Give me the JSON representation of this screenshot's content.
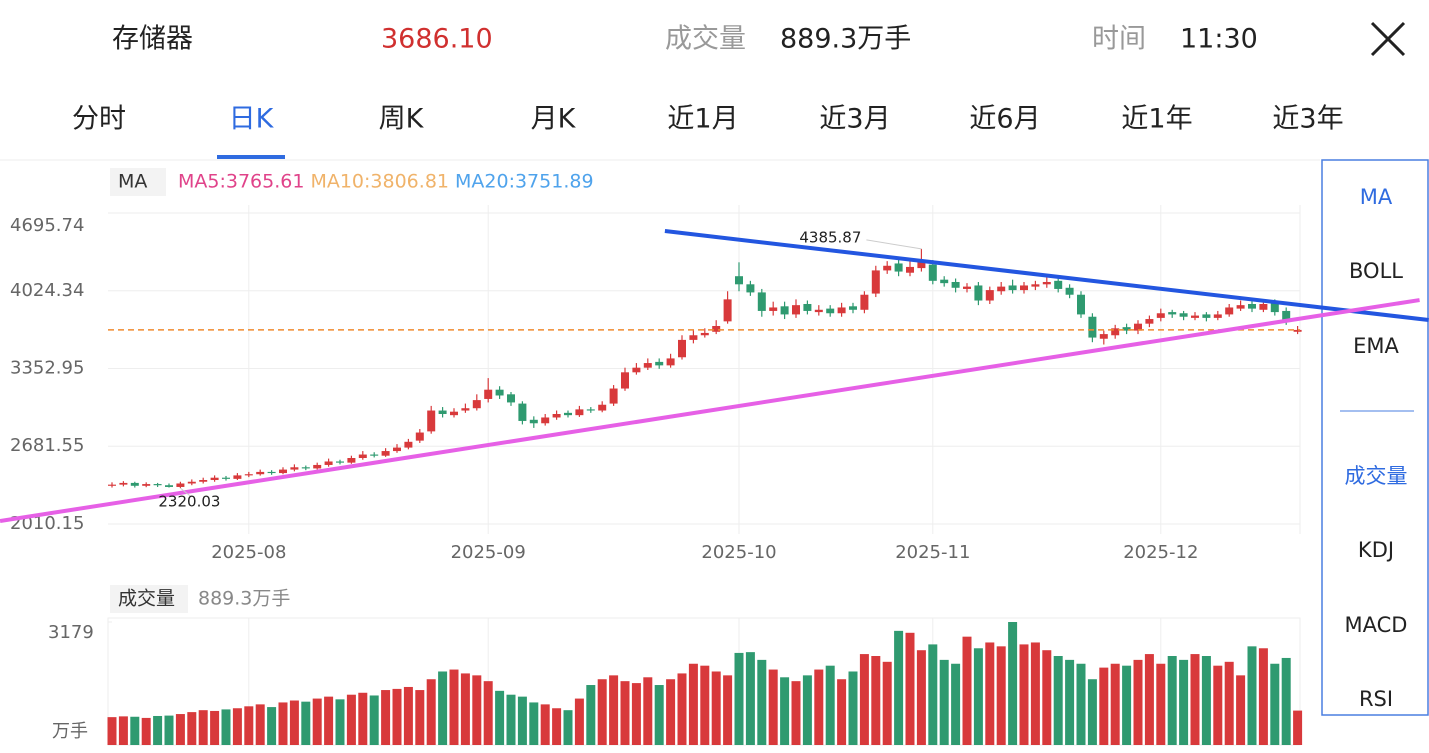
{
  "header": {
    "name": "存储器",
    "price": "3686.10",
    "volume_label": "成交量",
    "volume": "889.3万手",
    "time_label": "时间",
    "time": "11:30"
  },
  "tabs": {
    "items": [
      "分时",
      "日K",
      "周K",
      "月K",
      "近1月",
      "近3月",
      "近6月",
      "近1年",
      "近3年"
    ],
    "selected": 1
  },
  "side_panel": {
    "items": [
      "MA",
      "BOLL",
      "EMA",
      "成交量",
      "KDJ",
      "MACD",
      "RSI"
    ],
    "selected": [
      0,
      3
    ]
  },
  "chart_data": [
    {
      "type": "candlestick",
      "legend": {
        "label": "MA",
        "items": [
          {
            "text": "MA5:3765.61",
            "color": "#e0438a"
          },
          {
            "text": "MA10:3806.81",
            "color": "#f0b36a"
          },
          {
            "text": "MA20:3751.89",
            "color": "#4fa3ec"
          }
        ]
      },
      "up_color": "#d8393b",
      "down_color": "#2f9a70",
      "open": [
        2340,
        2350,
        2365,
        2340,
        2355,
        2345,
        2330,
        2360,
        2375,
        2390,
        2410,
        2400,
        2430,
        2440,
        2460,
        2450,
        2480,
        2500,
        2490,
        2520,
        2550,
        2540,
        2580,
        2610,
        2600,
        2640,
        2670,
        2730,
        2810,
        2990,
        2950,
        2990,
        3010,
        3090,
        3170,
        3130,
        3050,
        2910,
        2880,
        2930,
        2970,
        2950,
        3000,
        2990,
        3050,
        3180,
        3320,
        3360,
        3410,
        3380,
        3450,
        3600,
        3640,
        3670,
        3760,
        4150,
        4080,
        4010,
        3850,
        3890,
        3820,
        3910,
        3840,
        3870,
        3830,
        3890,
        3860,
        4000,
        4200,
        4260,
        4180,
        4220,
        4250,
        4120,
        4100,
        4040,
        4070,
        3940,
        4020,
        4070,
        4030,
        4060,
        4080,
        4110,
        4050,
        3990,
        3800,
        3610,
        3640,
        3710,
        3680,
        3740,
        3790,
        3840,
        3830,
        3790,
        3820,
        3790,
        3820,
        3870,
        3910,
        3860,
        3920,
        3850,
        3670
      ],
      "high": [
        2370,
        2380,
        2375,
        2370,
        2365,
        2360,
        2375,
        2395,
        2410,
        2430,
        2425,
        2450,
        2460,
        2480,
        2475,
        2500,
        2525,
        2515,
        2540,
        2575,
        2565,
        2600,
        2640,
        2630,
        2665,
        2700,
        2745,
        2830,
        3030,
        3020,
        3010,
        3050,
        3130,
        3270,
        3200,
        3150,
        3070,
        2940,
        2960,
        2990,
        2990,
        3030,
        3020,
        3070,
        3210,
        3360,
        3400,
        3440,
        3440,
        3480,
        3640,
        3690,
        3700,
        3770,
        4020,
        4270,
        4110,
        4040,
        3930,
        3930,
        3950,
        3940,
        3900,
        3900,
        3920,
        3920,
        4020,
        4240,
        4280,
        4300,
        4280,
        4385.87,
        4290,
        4150,
        4130,
        4090,
        4100,
        4060,
        4100,
        4120,
        4100,
        4110,
        4140,
        4130,
        4080,
        4020,
        3830,
        3680,
        3730,
        3740,
        3770,
        3810,
        3870,
        3860,
        3850,
        3840,
        3840,
        3850,
        3910,
        3940,
        3950,
        3940,
        3950,
        3880,
        3720
      ],
      "low": [
        2325,
        2335,
        2325,
        2328,
        2330,
        2325,
        2320.03,
        2345,
        2360,
        2375,
        2385,
        2390,
        2415,
        2428,
        2435,
        2440,
        2465,
        2475,
        2480,
        2505,
        2525,
        2530,
        2565,
        2585,
        2590,
        2625,
        2655,
        2710,
        2790,
        2930,
        2930,
        2970,
        2990,
        3060,
        3090,
        3030,
        2870,
        2840,
        2860,
        2910,
        2930,
        2935,
        2970,
        2975,
        3030,
        3160,
        3300,
        3340,
        3350,
        3360,
        3430,
        3570,
        3620,
        3650,
        3740,
        4020,
        3980,
        3800,
        3810,
        3780,
        3790,
        3820,
        3810,
        3800,
        3800,
        3830,
        3830,
        3970,
        4170,
        4150,
        4150,
        4190,
        4080,
        4060,
        4010,
        4010,
        3900,
        3910,
        3990,
        4000,
        4000,
        4030,
        4050,
        4010,
        3960,
        3790,
        3580,
        3560,
        3610,
        3650,
        3650,
        3710,
        3760,
        3790,
        3770,
        3770,
        3760,
        3770,
        3800,
        3850,
        3840,
        3840,
        3810,
        3730,
        3650
      ],
      "close": [
        2350,
        2365,
        2340,
        2355,
        2345,
        2330,
        2360,
        2375,
        2390,
        2410,
        2400,
        2430,
        2440,
        2460,
        2450,
        2480,
        2500,
        2490,
        2520,
        2550,
        2540,
        2580,
        2610,
        2600,
        2640,
        2670,
        2720,
        2800,
        2990,
        2960,
        2980,
        3010,
        3080,
        3170,
        3120,
        3060,
        2900,
        2880,
        2930,
        2960,
        2950,
        3000,
        2990,
        3040,
        3180,
        3320,
        3360,
        3400,
        3380,
        3440,
        3600,
        3640,
        3660,
        3720,
        3950,
        4080,
        4010,
        3850,
        3880,
        3820,
        3900,
        3850,
        3860,
        3830,
        3880,
        3860,
        3990,
        4200,
        4240,
        4190,
        4230,
        4280,
        4110,
        4090,
        4050,
        4060,
        3940,
        4030,
        4060,
        4030,
        4070,
        4080,
        4100,
        4040,
        3990,
        3820,
        3620,
        3650,
        3700,
        3680,
        3740,
        3780,
        3830,
        3820,
        3800,
        3810,
        3790,
        3820,
        3880,
        3900,
        3870,
        3910,
        3840,
        3760,
        3686.1
      ],
      "ylim": [
        2010.15,
        4695.74
      ],
      "yticks": [
        2010.15,
        2681.55,
        3352.95,
        4024.34,
        4695.74
      ],
      "xticks": [
        {
          "value": 12,
          "label": "2025-08"
        },
        {
          "value": 33,
          "label": "2025-09"
        },
        {
          "value": 55,
          "label": "2025-10"
        },
        {
          "value": 72,
          "label": "2025-11"
        },
        {
          "value": 92,
          "label": "2025-12"
        }
      ],
      "grid": true,
      "price_line": {
        "color": "#f08a2e",
        "dashed": true
      },
      "trend_lines": [
        {
          "color": "#2356e0",
          "start": [
            48.5,
            4540
          ],
          "end": [
            115.5,
            3771.7
          ]
        },
        {
          "color": "#e660e6",
          "start": [
            -9.82,
            2036
          ],
          "end": [
            114.7,
            3944
          ]
        }
      ]
    },
    {
      "type": "bar",
      "legend_label": "成交量",
      "legend_value": "889.3万手",
      "values": [
        720,
        740,
        730,
        700,
        750,
        760,
        800,
        850,
        900,
        880,
        920,
        950,
        1000,
        1050,
        980,
        1100,
        1150,
        1120,
        1200,
        1250,
        1180,
        1300,
        1350,
        1280,
        1420,
        1450,
        1500,
        1420,
        1700,
        1900,
        1950,
        1850,
        1800,
        1650,
        1400,
        1300,
        1250,
        1100,
        1050,
        950,
        900,
        1200,
        1550,
        1700,
        1800,
        1650,
        1600,
        1750,
        1550,
        1700,
        1850,
        2100,
        2050,
        1900,
        1800,
        2380,
        2400,
        2200,
        1950,
        1750,
        1650,
        1800,
        1950,
        2050,
        1700,
        1900,
        2350,
        2300,
        2150,
        2950,
        2900,
        2450,
        2600,
        2200,
        2100,
        2800,
        2500,
        2650,
        2550,
        3179,
        2600,
        2650,
        2450,
        2300,
        2200,
        2100,
        1700,
        2000,
        2100,
        2050,
        2200,
        2350,
        2100,
        2300,
        2200,
        2350,
        2300,
        2050,
        2150,
        1800,
        2550,
        2500,
        2100,
        2250,
        889.3
      ],
      "ylim": [
        0,
        3179
      ],
      "yticks": [
        3179
      ],
      "unit_label": "万手",
      "grid": true
    }
  ]
}
